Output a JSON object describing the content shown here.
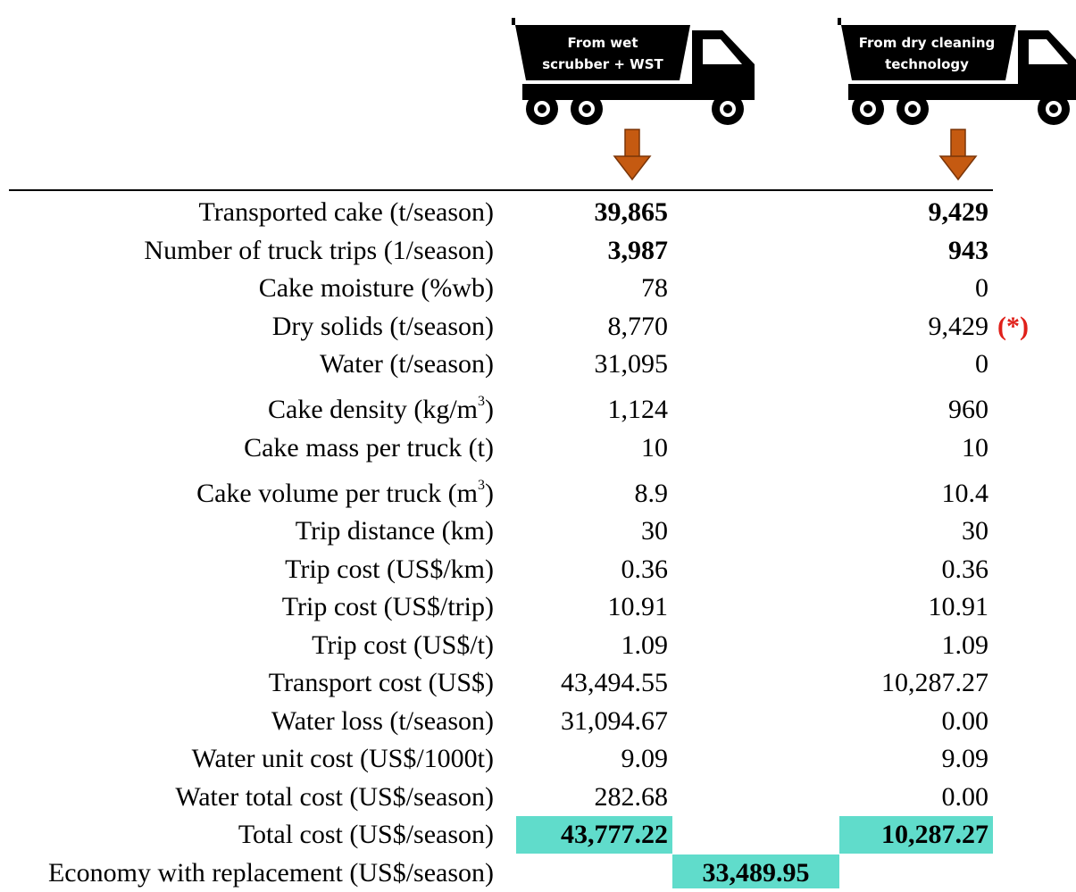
{
  "header": {
    "columns": [
      {
        "lines": [
          "From wet",
          "scrubber + WST"
        ]
      },
      {
        "lines": [
          "From dry cleaning",
          "technology"
        ]
      }
    ]
  },
  "table": {
    "rows": [
      {
        "label": "Transported cake (t/season)",
        "values": [
          "39,865",
          "9,429"
        ],
        "bold": true
      },
      {
        "label": "Number of truck trips (1/season)",
        "values": [
          "3,987",
          "943"
        ],
        "bold": true
      },
      {
        "label": "Cake moisture (%wb)",
        "values": [
          "78",
          "0"
        ]
      },
      {
        "label": "Dry solids (t/season)",
        "values": [
          "8,770",
          "9,429"
        ],
        "note": "(*)"
      },
      {
        "label": "Water (t/season)",
        "values": [
          "31,095",
          "0"
        ]
      },
      {
        "label": "Cake density (kg/m",
        "sup": "3",
        "label_end": ")",
        "values": [
          "1,124",
          "960"
        ]
      },
      {
        "label": "Cake mass per truck (t)",
        "values": [
          "10",
          "10"
        ]
      },
      {
        "label": "Cake volume per truck (m",
        "sup": "3",
        "label_end": ")",
        "values": [
          "8.9",
          "10.4"
        ]
      },
      {
        "label": "Trip distance (km)",
        "values": [
          "30",
          "30"
        ]
      },
      {
        "label": "Trip cost (US$/km)",
        "values": [
          "0.36",
          "0.36"
        ]
      },
      {
        "label": "Trip cost (US$/trip)",
        "values": [
          "10.91",
          "10.91"
        ]
      },
      {
        "label": "Trip cost (US$/t)",
        "values": [
          "1.09",
          "1.09"
        ]
      },
      {
        "label": "Transport cost (US$)",
        "values": [
          "43,494.55",
          "10,287.27"
        ]
      },
      {
        "label": "Water loss (t/season)",
        "values": [
          "31,094.67",
          "0.00"
        ]
      },
      {
        "label": "Water unit cost (US$/1000t)",
        "values": [
          "9.09",
          "9.09"
        ]
      },
      {
        "label": "Water total cost (US$/season)",
        "values": [
          "282.68",
          "0.00"
        ]
      },
      {
        "label": "Total cost (US$/season)",
        "values": [
          "43,777.22",
          "10,287.27"
        ],
        "bold": true,
        "highlight": true
      }
    ],
    "economy": {
      "label": "Economy with replacement (US$/season)",
      "value": "33,489.95"
    }
  }
}
